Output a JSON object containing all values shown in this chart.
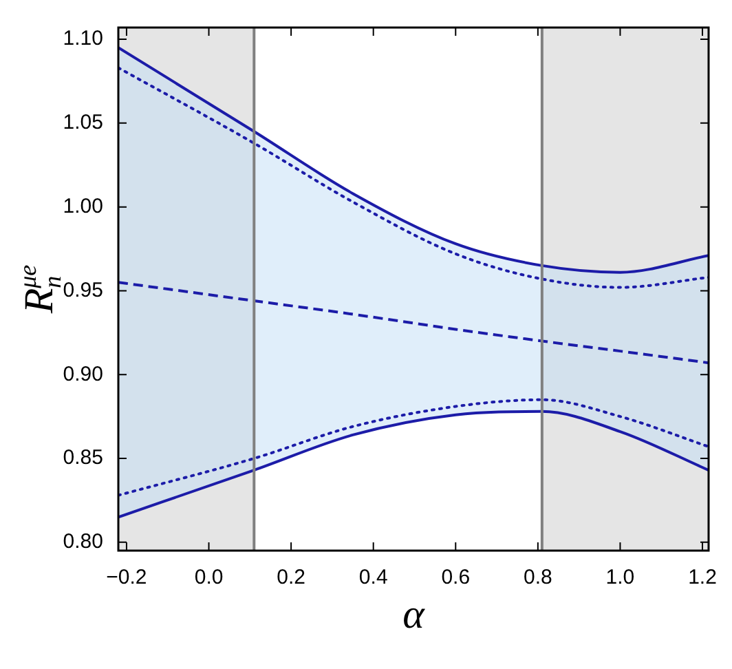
{
  "chart_data": {
    "type": "line",
    "xlabel": "α",
    "ylabel": "R$_{n}$$^{μe}$",
    "x": [
      -0.22,
      0.11,
      0.35,
      0.6,
      0.81,
      1.0,
      1.215
    ],
    "series": [
      {
        "color": "#1c1ca8",
        "line_style": "dashed",
        "values": [
          0.955,
          0.944,
          0.936,
          0.927,
          0.92,
          0.914,
          0.907
        ],
        "lower": [
          0.815,
          0.843,
          0.864,
          0.876,
          0.878,
          0.866,
          0.843
        ],
        "upper": [
          1.095,
          1.045,
          1.008,
          0.978,
          0.965,
          0.961,
          0.971
        ]
      },
      {
        "color": "#1c1ca8",
        "line_style": "solid",
        "values": [
          1.095,
          1.045,
          1.008,
          0.978,
          0.965,
          0.961,
          0.971
        ]
      },
      {
        "color": "#1c1ca8",
        "line_style": "solid",
        "values": [
          0.815,
          0.843,
          0.864,
          0.876,
          0.878,
          0.866,
          0.843
        ]
      },
      {
        "color": "#1c1ca8",
        "line_style": "dotted",
        "values": [
          1.083,
          1.038,
          1.003,
          0.972,
          0.957,
          0.952,
          0.958
        ]
      },
      {
        "color": "#1c1ca8",
        "line_style": "dotted",
        "values": [
          0.828,
          0.85,
          0.869,
          0.881,
          0.885,
          0.875,
          0.857
        ]
      }
    ],
    "xlim": [
      -0.22,
      1.215
    ],
    "ylim": [
      0.795,
      1.107
    ],
    "xticks": [
      {
        "value": -0.2,
        "label": "−0.2"
      },
      {
        "value": 0,
        "label": "0.0"
      },
      {
        "value": 0.2,
        "label": "0.2"
      },
      {
        "value": 0.4,
        "label": "0.4"
      },
      {
        "value": 0.6,
        "label": "0.6"
      },
      {
        "value": 0.8,
        "label": "0.8"
      },
      {
        "value": 1,
        "label": "1.0"
      },
      {
        "value": 1.2,
        "label": "1.2"
      }
    ],
    "yticks": [
      {
        "value": 0.8,
        "label": "0.80"
      },
      {
        "value": 0.85,
        "label": "0.85"
      },
      {
        "value": 0.9,
        "label": "0.90"
      },
      {
        "value": 0.95,
        "label": "0.95"
      },
      {
        "value": 1,
        "label": "1.00"
      },
      {
        "value": 1.05,
        "label": "1.05"
      },
      {
        "value": 1.1,
        "label": "1.10"
      }
    ],
    "bands": [
      {
        "axis": "x",
        "from": -0.22,
        "to": 0.11,
        "color": "#e5e5e5"
      },
      {
        "axis": "x",
        "from": 0.81,
        "to": 1.215,
        "color": "#e5e5e5"
      }
    ],
    "ref_lines": [
      {
        "axis": "x",
        "value": 0.11,
        "color": "#808080"
      },
      {
        "axis": "x",
        "value": 0.81,
        "color": "#808080"
      }
    ],
    "grid": false,
    "legend": false,
    "marker": "none"
  }
}
